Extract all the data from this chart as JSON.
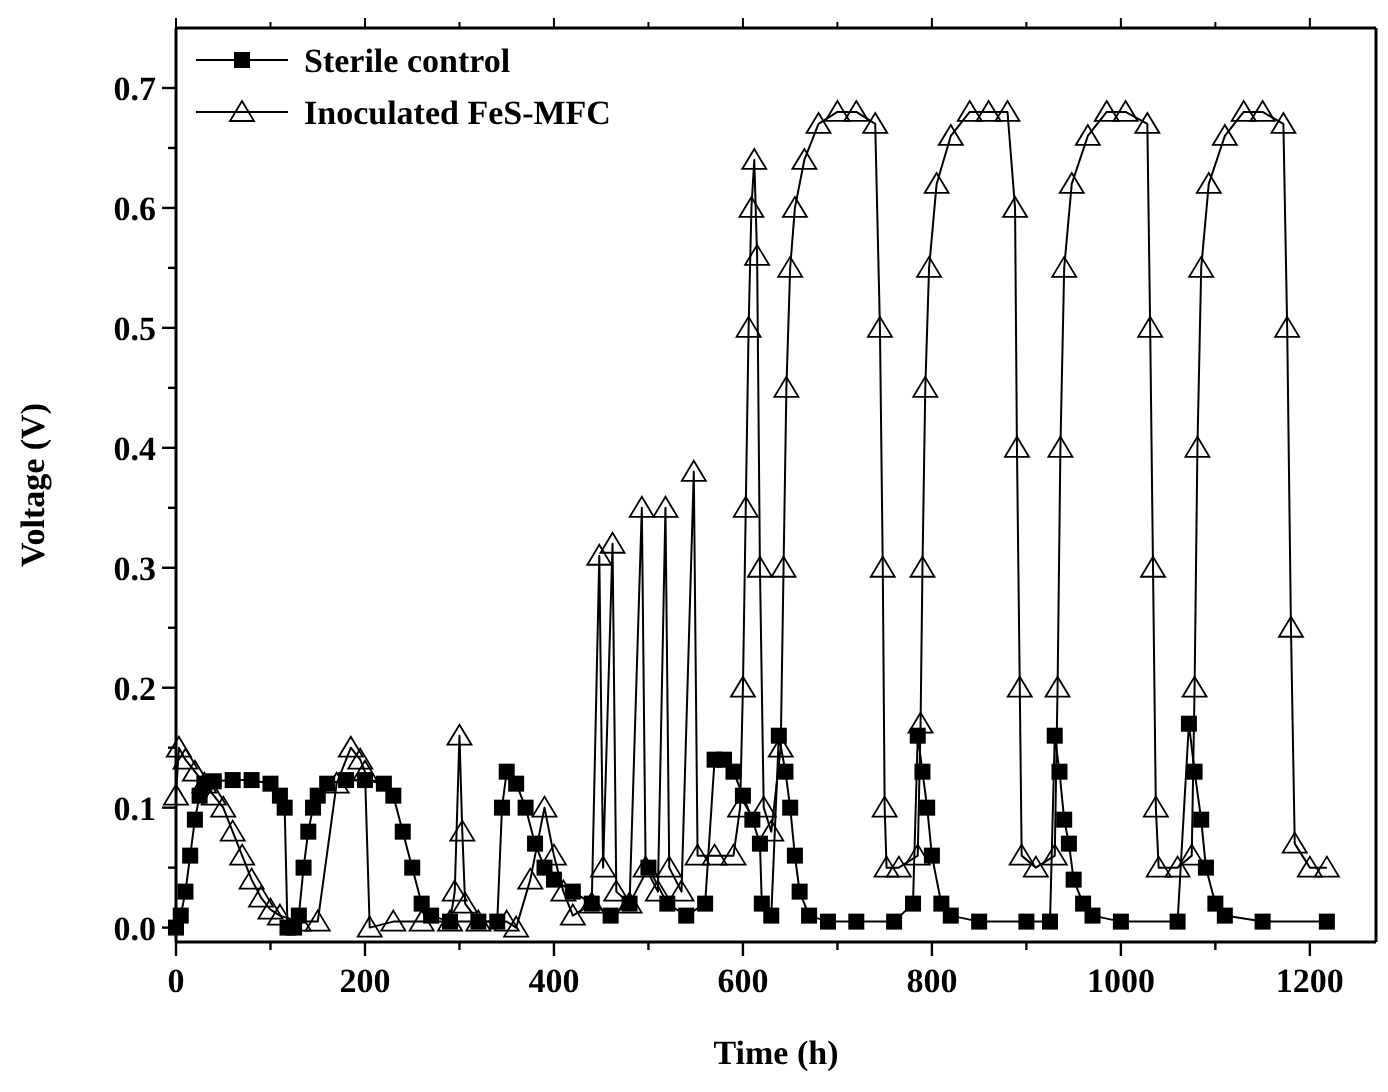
{
  "chart_data": {
    "type": "line",
    "xlabel": "Time (h)",
    "ylabel": "Voltage (V)",
    "xlim": [
      0,
      1270
    ],
    "ylim": [
      -0.012,
      0.75
    ],
    "xticks": [
      0,
      {
        "value": 100,
        "label": null
      },
      200,
      {
        "value": 300,
        "label": null
      },
      400,
      {
        "value": 500,
        "label": null
      },
      600,
      {
        "value": 700,
        "label": null
      },
      800,
      {
        "value": 900,
        "label": null
      },
      1000,
      {
        "value": 1100,
        "label": null
      },
      1200
    ],
    "yticks": [
      {
        "value": 0,
        "label": "0.0"
      },
      {
        "value": 0.05,
        "label": null
      },
      {
        "value": 0.1,
        "label": "0.1"
      },
      {
        "value": 0.15,
        "label": null
      },
      {
        "value": 0.2,
        "label": "0.2"
      },
      {
        "value": 0.25,
        "label": null
      },
      {
        "value": 0.3,
        "label": "0.3"
      },
      {
        "value": 0.35,
        "label": null
      },
      {
        "value": 0.4,
        "label": "0.4"
      },
      {
        "value": 0.45,
        "label": null
      },
      {
        "value": 0.5,
        "label": "0.5"
      },
      {
        "value": 0.55,
        "label": null
      },
      {
        "value": 0.6,
        "label": "0.6"
      },
      {
        "value": 0.65,
        "label": null
      },
      {
        "value": 0.7,
        "label": "0.7"
      }
    ],
    "grid": false,
    "legend": "top left",
    "line_style": "solid",
    "series": [
      {
        "name": "Sterile control",
        "color": "#000000",
        "marker": "square",
        "x": [
          0,
          5,
          10,
          15,
          20,
          25,
          30,
          40,
          60,
          80,
          100,
          110,
          115,
          118,
          125,
          130,
          135,
          140,
          145,
          150,
          160,
          180,
          200,
          220,
          230,
          240,
          250,
          260,
          270,
          290,
          320,
          340,
          345,
          350,
          360,
          370,
          380,
          390,
          400,
          420,
          440,
          460,
          480,
          500,
          520,
          540,
          560,
          570,
          580,
          590,
          600,
          610,
          618,
          620,
          630,
          638,
          645,
          650,
          655,
          660,
          670,
          690,
          720,
          760,
          780,
          785,
          790,
          795,
          800,
          810,
          820,
          850,
          900,
          925,
          930,
          935,
          940,
          945,
          950,
          960,
          970,
          1000,
          1060,
          1072,
          1078,
          1085,
          1090,
          1100,
          1110,
          1150,
          1218
        ],
        "values": [
          0,
          0.01,
          0.03,
          0.06,
          0.09,
          0.11,
          0.12,
          0.122,
          0.123,
          0.123,
          0.12,
          0.11,
          0.1,
          0,
          0,
          0.01,
          0.05,
          0.08,
          0.1,
          0.11,
          0.12,
          0.123,
          0.123,
          0.12,
          0.11,
          0.08,
          0.05,
          0.02,
          0.01,
          0.005,
          0.005,
          0.005,
          0.1,
          0.13,
          0.12,
          0.1,
          0.07,
          0.05,
          0.04,
          0.03,
          0.02,
          0.01,
          0.02,
          0.05,
          0.02,
          0.01,
          0.02,
          0.14,
          0.14,
          0.13,
          0.11,
          0.09,
          0.07,
          0.02,
          0.01,
          0.16,
          0.13,
          0.1,
          0.06,
          0.03,
          0.01,
          0.005,
          0.005,
          0.005,
          0.02,
          0.16,
          0.13,
          0.1,
          0.06,
          0.02,
          0.01,
          0.005,
          0.005,
          0.005,
          0.16,
          0.13,
          0.09,
          0.07,
          0.04,
          0.02,
          0.01,
          0.005,
          0.005,
          0.17,
          0.13,
          0.09,
          0.05,
          0.02,
          0.01,
          0.005,
          0.005
        ]
      },
      {
        "name": "Inoculated FeS-MFC",
        "color": "#000000",
        "marker": "triangle",
        "x": [
          0,
          3,
          10,
          20,
          30,
          40,
          50,
          60,
          70,
          80,
          90,
          100,
          110,
          130,
          150,
          170,
          185,
          195,
          200,
          205,
          230,
          260,
          290,
          295,
          300,
          303,
          306,
          320,
          350,
          360,
          375,
          390,
          400,
          410,
          420,
          440,
          448,
          452,
          462,
          466,
          480,
          493,
          497,
          510,
          518,
          522,
          535,
          548,
          552,
          570,
          590,
          597,
          600,
          603,
          606,
          609,
          612,
          615,
          618,
          622,
          630,
          640,
          643,
          646,
          650,
          655,
          665,
          680,
          700,
          720,
          740,
          745,
          748,
          750,
          752,
          765,
          785,
          788,
          790,
          793,
          797,
          805,
          820,
          840,
          860,
          880,
          888,
          890,
          893,
          895,
          910,
          930,
          933,
          936,
          940,
          948,
          965,
          985,
          1005,
          1028,
          1031,
          1034,
          1037,
          1040,
          1060,
          1075,
          1078,
          1081,
          1085,
          1093,
          1110,
          1130,
          1150,
          1172,
          1176,
          1180,
          1184,
          1200,
          1218
        ],
        "values": [
          0.11,
          0.15,
          0.14,
          0.13,
          0.12,
          0.11,
          0.1,
          0.08,
          0.06,
          0.04,
          0.025,
          0.015,
          0.01,
          0.005,
          0.005,
          0.12,
          0.15,
          0.14,
          0.13,
          0,
          0.005,
          0.005,
          0.005,
          0.03,
          0.16,
          0.08,
          0.02,
          0.005,
          0.005,
          0,
          0.04,
          0.1,
          0.06,
          0.03,
          0.01,
          0.02,
          0.31,
          0.05,
          0.32,
          0.03,
          0.02,
          0.35,
          0.05,
          0.03,
          0.35,
          0.05,
          0.03,
          0.38,
          0.06,
          0.06,
          0.06,
          0.1,
          0.2,
          0.35,
          0.5,
          0.6,
          0.64,
          0.56,
          0.3,
          0.1,
          0.08,
          0.15,
          0.3,
          0.45,
          0.55,
          0.6,
          0.64,
          0.67,
          0.68,
          0.68,
          0.67,
          0.5,
          0.3,
          0.1,
          0.05,
          0.05,
          0.06,
          0.17,
          0.3,
          0.45,
          0.55,
          0.62,
          0.66,
          0.68,
          0.68,
          0.68,
          0.6,
          0.4,
          0.2,
          0.06,
          0.05,
          0.06,
          0.2,
          0.4,
          0.55,
          0.62,
          0.66,
          0.68,
          0.68,
          0.67,
          0.5,
          0.3,
          0.1,
          0.05,
          0.05,
          0.06,
          0.2,
          0.4,
          0.55,
          0.62,
          0.66,
          0.68,
          0.68,
          0.67,
          0.5,
          0.25,
          0.07,
          0.05,
          0.05
        ]
      }
    ]
  }
}
